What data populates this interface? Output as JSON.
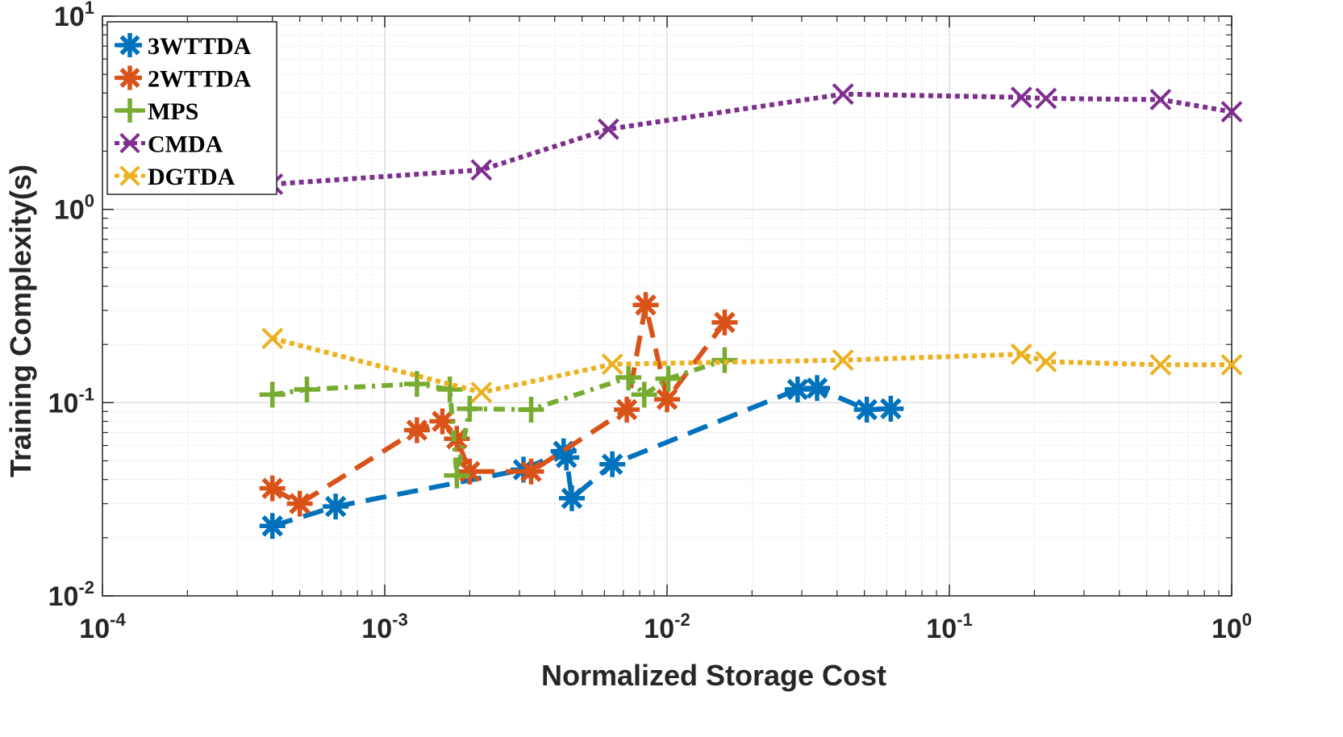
{
  "chart_data": {
    "type": "scatter",
    "xscale": "log",
    "yscale": "log",
    "xlim": [
      0.0001,
      1
    ],
    "ylim": [
      0.01,
      10
    ],
    "xlabel": "Normalized Storage Cost",
    "ylabel": "Training Complexity(s)",
    "x_ticks": [
      {
        "value": 0.0001,
        "base": "10",
        "exp": "-4"
      },
      {
        "value": 0.001,
        "base": "10",
        "exp": "-3"
      },
      {
        "value": 0.01,
        "base": "10",
        "exp": "-2"
      },
      {
        "value": 0.1,
        "base": "10",
        "exp": "-1"
      },
      {
        "value": 1,
        "base": "10",
        "exp": "0"
      }
    ],
    "y_ticks": [
      {
        "value": 0.01,
        "base": "10",
        "exp": "-2"
      },
      {
        "value": 0.1,
        "base": "10",
        "exp": "-1"
      },
      {
        "value": 1,
        "base": "10",
        "exp": "0"
      },
      {
        "value": 10,
        "base": "10",
        "exp": "1"
      }
    ],
    "grid": true,
    "legend_position": "top-left",
    "series": [
      {
        "name": "3WTTDA",
        "color": "#0072BD",
        "marker": "asterisk",
        "line": "dashed",
        "x": [
          0.0004,
          0.00067,
          0.0031,
          0.0043,
          0.0044,
          0.0046,
          0.0064,
          0.029,
          0.034,
          0.051,
          0.062
        ],
        "y": [
          0.023,
          0.029,
          0.045,
          0.056,
          0.052,
          0.032,
          0.048,
          0.117,
          0.119,
          0.092,
          0.093
        ]
      },
      {
        "name": "2WTTDA",
        "color": "#D95319",
        "marker": "asterisk",
        "line": "dashed",
        "x": [
          0.0004,
          0.0005,
          0.0013,
          0.0016,
          0.0018,
          0.002,
          0.0033,
          0.0072,
          0.0084,
          0.01,
          0.016
        ],
        "y": [
          0.036,
          0.03,
          0.072,
          0.08,
          0.065,
          0.044,
          0.044,
          0.092,
          0.32,
          0.104,
          0.26
        ]
      },
      {
        "name": "MPS",
        "color": "#77AC30",
        "marker": "plus",
        "line": "dash-dot",
        "x": [
          0.0004,
          0.00053,
          0.0013,
          0.0017,
          0.0018,
          0.002,
          0.0033,
          0.0073,
          0.0083,
          0.0101,
          0.016
        ],
        "y": [
          0.11,
          0.117,
          0.125,
          0.117,
          0.042,
          0.093,
          0.092,
          0.135,
          0.11,
          0.133,
          0.166
        ]
      },
      {
        "name": "CMDA",
        "color": "#7E2F8E",
        "marker": "x",
        "line": "dotted",
        "x": [
          0.0004,
          0.0022,
          0.0062,
          0.042,
          0.18,
          0.22,
          0.56,
          1
        ],
        "y": [
          1.35,
          1.6,
          2.6,
          3.95,
          3.8,
          3.75,
          3.7,
          3.2
        ]
      },
      {
        "name": "DGTDA",
        "color": "#EDB120",
        "marker": "x",
        "line": "dotted",
        "x": [
          0.0004,
          0.0022,
          0.0064,
          0.042,
          0.18,
          0.22,
          0.56,
          1
        ],
        "y": [
          0.215,
          0.113,
          0.158,
          0.166,
          0.178,
          0.163,
          0.157,
          0.157
        ]
      }
    ]
  }
}
